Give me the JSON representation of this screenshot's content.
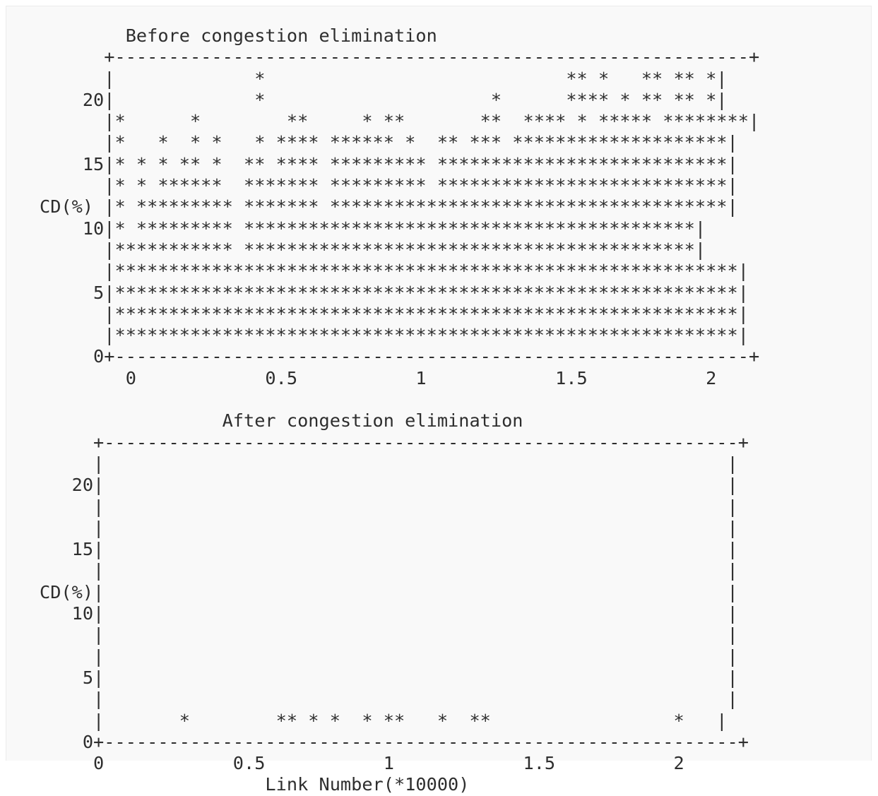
{
  "figure": {
    "before_chart": [
      "        Before congestion elimination",
      "      +-----------------------------------------------------------+",
      "      |             *                            ** *   ** ** *|",
      "    20|             *                     *      **** * ** ** *|",
      "      |*      *        **     * **       **  **** * ***** ********|",
      "      |*   *  * *   * **** ****** *  ** *** ********************|",
      "    15|* * * ** *  ** **** ********* ***************************|",
      "      |* * ******  ******* ********* ***************************|",
      "CD(%) |* ********* ******* *************************************|",
      "    10|* ********* ******************************************|",
      "      |*********** ******************************************|",
      "      |**********************************************************|",
      "     5|**********************************************************|",
      "      |**********************************************************|",
      "      |**********************************************************|",
      "     0+-----------------------------------------------------------+",
      "        0            0.5           1            1.5           2"
    ],
    "after_chart": [
      "",
      "                 After congestion elimination",
      "     +-----------------------------------------------------------+",
      "     |                                                          |",
      "   20|                                                          |",
      "     |                                                          |",
      "     |                                                          |",
      "   15|                                                          |",
      "     |                                                          |",
      "CD(%)|                                                          |",
      "   10|                                                          |",
      "     |                                                          |",
      "     |                                                          |",
      "    5|                                                          |",
      "     |                                                          |",
      "     |       *        ** * *  * **   *  **                 *   |",
      "    0+-----------------------------------------------------------+",
      "     0            0.5           1            1.5           2",
      "                     Link Number(*10000)"
    ]
  },
  "chart_data": [
    {
      "type": "scatter",
      "title": "Before congestion elimination",
      "xlabel": "",
      "ylabel": "CD(%)",
      "x_ticks": [
        "0",
        "0.5",
        "1",
        "1.5",
        "2"
      ],
      "y_ticks": [
        "0",
        "5",
        "10",
        "15",
        "20"
      ],
      "xlim": [
        0,
        2
      ],
      "ylim": [
        0,
        22
      ],
      "grid": false
    },
    {
      "type": "scatter",
      "title": "After congestion elimination",
      "xlabel": "Link Number(*10000)",
      "ylabel": "CD(%)",
      "x_ticks": [
        "0",
        "0.5",
        "1",
        "1.5",
        "2"
      ],
      "y_ticks": [
        "0",
        "5",
        "10",
        "15",
        "20"
      ],
      "xlim": [
        0,
        2
      ],
      "ylim": [
        0,
        22
      ],
      "grid": false,
      "points": [
        {
          "x": 0.29,
          "y": 1
        },
        {
          "x": 0.6,
          "y": 1
        },
        {
          "x": 0.64,
          "y": 1
        },
        {
          "x": 0.75,
          "y": 1
        },
        {
          "x": 0.82,
          "y": 1
        },
        {
          "x": 0.93,
          "y": 1
        },
        {
          "x": 1.03,
          "y": 1
        },
        {
          "x": 1.07,
          "y": 1
        },
        {
          "x": 1.21,
          "y": 1
        },
        {
          "x": 1.32,
          "y": 1
        },
        {
          "x": 1.36,
          "y": 1
        },
        {
          "x": 2.0,
          "y": 1
        }
      ]
    }
  ]
}
